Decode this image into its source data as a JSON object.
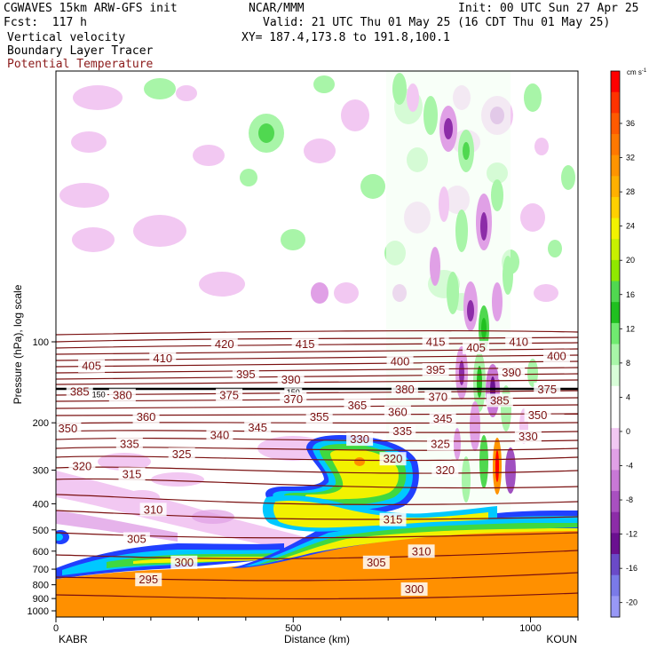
{
  "header": {
    "model": "CGWAVES 15km ARW-GFS init",
    "org": "NCAR/MMM",
    "init": "Init: 00 UTC Sun 27 Apr 25",
    "fcst": "Fcst:  117 h",
    "valid": "Valid: 21 UTC Thu 01 May 25 (16 CDT Thu 01 May 25)",
    "field1": "Vertical velocity",
    "xy": "XY= 187.4,173.8 to 191.8,100.1",
    "field2": "Boundary Layer Tracer",
    "field3": "Potential Temperature"
  },
  "colors": {
    "theta": "#7a1010",
    "tropopause": "#000000",
    "tracer_orange": "#ff9000",
    "tracer_yellow": "#f2f200",
    "tracer_green": "#40d840",
    "tracer_cyan": "#00c8ff",
    "tracer_blue": "#2040ff"
  },
  "chart_data": {
    "type": "contour-cross-section",
    "xlabel": "Distance (km)",
    "ylabel": "Pressure (hPa), log scale",
    "x_ticks": [
      0,
      500,
      1000
    ],
    "xlim": [
      0,
      1100
    ],
    "y_scale": "log",
    "y_ticks": [
      100,
      200,
      300,
      400,
      500,
      600,
      700,
      800,
      900,
      1000
    ],
    "ylim": [
      1000,
      10
    ],
    "left_end": "KABR",
    "right_end": "KOUN",
    "colorbar": {
      "unit": "cm s",
      "unit_sup": "-1",
      "labels": [
        36,
        32,
        28,
        24,
        20,
        16,
        12,
        8,
        4,
        0,
        -4,
        -8,
        -12,
        -16,
        -20
      ],
      "colors": [
        "#ff0000",
        "#ff3300",
        "#ff5a00",
        "#ff7800",
        "#ff9400",
        "#ffb000",
        "#ffd000",
        "#f2f200",
        "#c8f000",
        "#90e800",
        "#50d850",
        "#20c020",
        "#70ea70",
        "#a8f5a8",
        "#d8fdd8",
        "#ffffff",
        "#ffffff",
        "#f2c8f2",
        "#e0a0e6",
        "#c878d6",
        "#a850c0",
        "#8c2ca8",
        "#6a1090",
        "#6a4ac8",
        "#7a7ae8",
        "#9898f6"
      ]
    },
    "theta_levels": [
      {
        "label": "420",
        "x": 355,
        "p": 102
      },
      {
        "label": "415",
        "x": 525,
        "p": 102
      },
      {
        "label": "415",
        "x": 800,
        "p": 100
      },
      {
        "label": "405",
        "x": 885,
        "p": 105
      },
      {
        "label": "410",
        "x": 975,
        "p": 100
      },
      {
        "label": "405",
        "x": 75,
        "p": 123
      },
      {
        "label": "410",
        "x": 225,
        "p": 115
      },
      {
        "label": "400",
        "x": 725,
        "p": 118
      },
      {
        "label": "400",
        "x": 1055,
        "p": 113
      },
      {
        "label": "395",
        "x": 400,
        "p": 132
      },
      {
        "label": "390",
        "x": 495,
        "p": 138
      },
      {
        "label": "395",
        "x": 800,
        "p": 127
      },
      {
        "label": "390",
        "x": 960,
        "p": 130
      },
      {
        "label": "385",
        "x": 50,
        "p": 153
      },
      {
        "label": "150",
        "x": 90,
        "p": 158
      },
      {
        "label": "380",
        "x": 140,
        "p": 158
      },
      {
        "label": "375",
        "x": 365,
        "p": 158
      },
      {
        "label": "150",
        "x": 500,
        "p": 155
      },
      {
        "label": "370",
        "x": 500,
        "p": 163
      },
      {
        "label": "380",
        "x": 735,
        "p": 150
      },
      {
        "label": "370",
        "x": 805,
        "p": 160
      },
      {
        "label": "375",
        "x": 1035,
        "p": 150
      },
      {
        "label": "365",
        "x": 635,
        "p": 172
      },
      {
        "label": "360",
        "x": 720,
        "p": 182
      },
      {
        "label": "385",
        "x": 935,
        "p": 165
      },
      {
        "label": "360",
        "x": 190,
        "p": 190
      },
      {
        "label": "355",
        "x": 555,
        "p": 190
      },
      {
        "label": "345",
        "x": 815,
        "p": 193
      },
      {
        "label": "350",
        "x": 1015,
        "p": 187
      },
      {
        "label": "350",
        "x": 25,
        "p": 210
      },
      {
        "label": "345",
        "x": 425,
        "p": 208
      },
      {
        "label": "340",
        "x": 345,
        "p": 222
      },
      {
        "label": "335",
        "x": 730,
        "p": 215
      },
      {
        "label": "335",
        "x": 155,
        "p": 240
      },
      {
        "label": "325",
        "x": 810,
        "p": 240
      },
      {
        "label": "330",
        "x": 995,
        "p": 225
      },
      {
        "label": "325",
        "x": 265,
        "p": 262
      },
      {
        "label": "330",
        "x": 640,
        "p": 230
      },
      {
        "label": "320",
        "x": 55,
        "p": 290
      },
      {
        "label": "320",
        "x": 710,
        "p": 272
      },
      {
        "label": "320",
        "x": 820,
        "p": 300
      },
      {
        "label": "315",
        "x": 160,
        "p": 310
      },
      {
        "label": "310",
        "x": 205,
        "p": 420
      },
      {
        "label": "315",
        "x": 710,
        "p": 458
      },
      {
        "label": "305",
        "x": 170,
        "p": 540
      },
      {
        "label": "310",
        "x": 770,
        "p": 600
      },
      {
        "label": "300",
        "x": 270,
        "p": 660
      },
      {
        "label": "305",
        "x": 675,
        "p": 660
      },
      {
        "label": "295",
        "x": 195,
        "p": 765
      },
      {
        "label": "300",
        "x": 755,
        "p": 830
      }
    ]
  }
}
